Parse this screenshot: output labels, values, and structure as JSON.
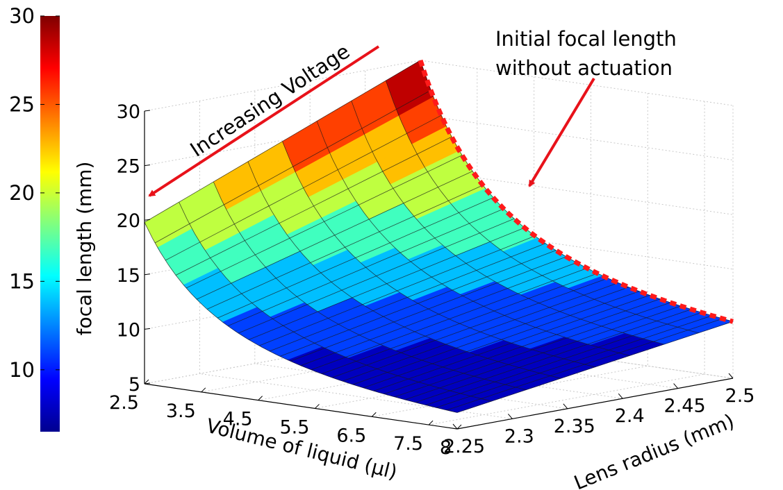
{
  "chart_data": {
    "type": "surface",
    "zlabel": "focal length (mm)",
    "xlabel": "Volume of liquid (μl)",
    "ylabel": "Lens radius (mm)",
    "x_ticks": [
      "2.5",
      "3.5",
      "4.5",
      "5.5",
      "6.5",
      "7.5",
      "8"
    ],
    "y_ticks": [
      "2.25",
      "2.3",
      "2.35",
      "2.4",
      "2.45",
      "2.5"
    ],
    "z_ticks": [
      "5",
      "10",
      "15",
      "20",
      "25",
      "30"
    ],
    "colorbar_ticks": [
      "10",
      "15",
      "20",
      "25",
      "30"
    ],
    "xlim": [
      2.5,
      8
    ],
    "ylim": [
      2.25,
      2.5
    ],
    "zlim": [
      5,
      30
    ],
    "clim": [
      6.5,
      30
    ],
    "colormap": "jet",
    "grid": true,
    "surface_corners": [
      {
        "volume": 2.5,
        "radius": 2.25,
        "focal_length": 19.8
      },
      {
        "volume": 2.5,
        "radius": 2.5,
        "focal_length": 30
      },
      {
        "volume": 8,
        "radius": 2.5,
        "focal_length": 10.2
      },
      {
        "volume": 8,
        "radius": 2.25,
        "focal_length": 6.5
      }
    ],
    "initial_curve_samples": [
      {
        "volume": 2.5,
        "radius": 2.5,
        "focal_length": 30
      },
      {
        "volume": 3.5,
        "radius": 2.5,
        "focal_length": 21.5
      },
      {
        "volume": 4.5,
        "radius": 2.5,
        "focal_length": 17.0
      },
      {
        "volume": 5.5,
        "radius": 2.5,
        "focal_length": 14.2
      },
      {
        "volume": 6.5,
        "radius": 2.5,
        "focal_length": 12.3
      },
      {
        "volume": 7.5,
        "radius": 2.5,
        "focal_length": 10.9
      },
      {
        "volume": 8,
        "radius": 2.5,
        "focal_length": 10.2
      }
    ],
    "initial_curve_color": "#ff1a1a",
    "arrow_color": "#e8121a",
    "annotations": {
      "voltage_arrow": "Increasing Voltage",
      "focal_line1": "Initial focal length",
      "focal_line2": "without actuation"
    }
  }
}
